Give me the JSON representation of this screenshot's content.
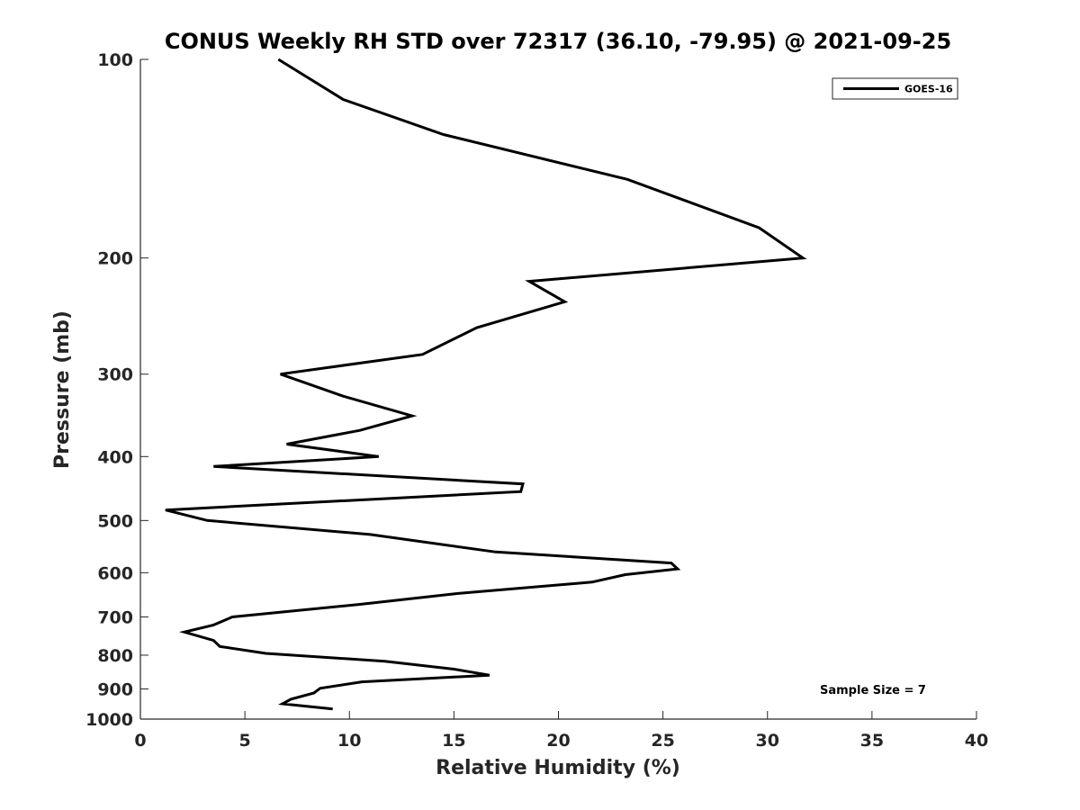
{
  "chart_data": {
    "type": "line",
    "title": "CONUS Weekly RH STD over 72317 (36.10, -79.95) @ 2021-09-25",
    "xlabel": "Relative Humidity (%)",
    "ylabel": "Pressure (mb)",
    "xlim": [
      0,
      40
    ],
    "ylim": [
      100,
      1000
    ],
    "y_scale": "log",
    "y_direction": "reversed",
    "xticks": [
      0,
      5,
      10,
      15,
      20,
      25,
      30,
      35,
      40
    ],
    "xtick_labels": [
      "0",
      "5",
      "10",
      "15",
      "20",
      "25",
      "30",
      "35",
      "40"
    ],
    "yticks": [
      100,
      200,
      300,
      400,
      500,
      600,
      700,
      800,
      900,
      1000
    ],
    "ytick_labels": [
      "100",
      "200",
      "300",
      "400",
      "500",
      "600",
      "700",
      "800",
      "900",
      "1000"
    ],
    "grid": false,
    "legend_position": "top-right",
    "series": [
      {
        "name": "GOES-16",
        "color": "#000000",
        "x": [
          6.6,
          9.7,
          14.5,
          23.3,
          29.6,
          31.7,
          18.6,
          20.3,
          16.1,
          13.5,
          6.7,
          9.7,
          13.0,
          10.5,
          7.0,
          11.4,
          3.5,
          18.3,
          18.2,
          1.2,
          3.2,
          11.0,
          17.0,
          25.4,
          25.7,
          23.2,
          21.6,
          15.2,
          10.5,
          4.4,
          3.5,
          2.1,
          3.5,
          3.8,
          6.0,
          11.7,
          15.0,
          16.7,
          10.6,
          8.6,
          8.3,
          7.2,
          6.8,
          9.2
        ],
        "y": [
          100,
          115,
          130,
          152,
          180,
          200,
          217,
          233,
          255,
          280,
          300,
          324,
          347,
          365,
          383,
          400,
          414,
          440,
          452,
          482,
          500,
          525,
          558,
          580,
          592,
          604,
          620,
          645,
          670,
          700,
          720,
          738,
          760,
          776,
          795,
          817,
          840,
          858,
          878,
          898,
          913,
          933,
          948,
          965
        ]
      }
    ]
  },
  "legend": {
    "label": "GOES-16"
  },
  "annotation": {
    "text": "Sample Size = 7"
  }
}
